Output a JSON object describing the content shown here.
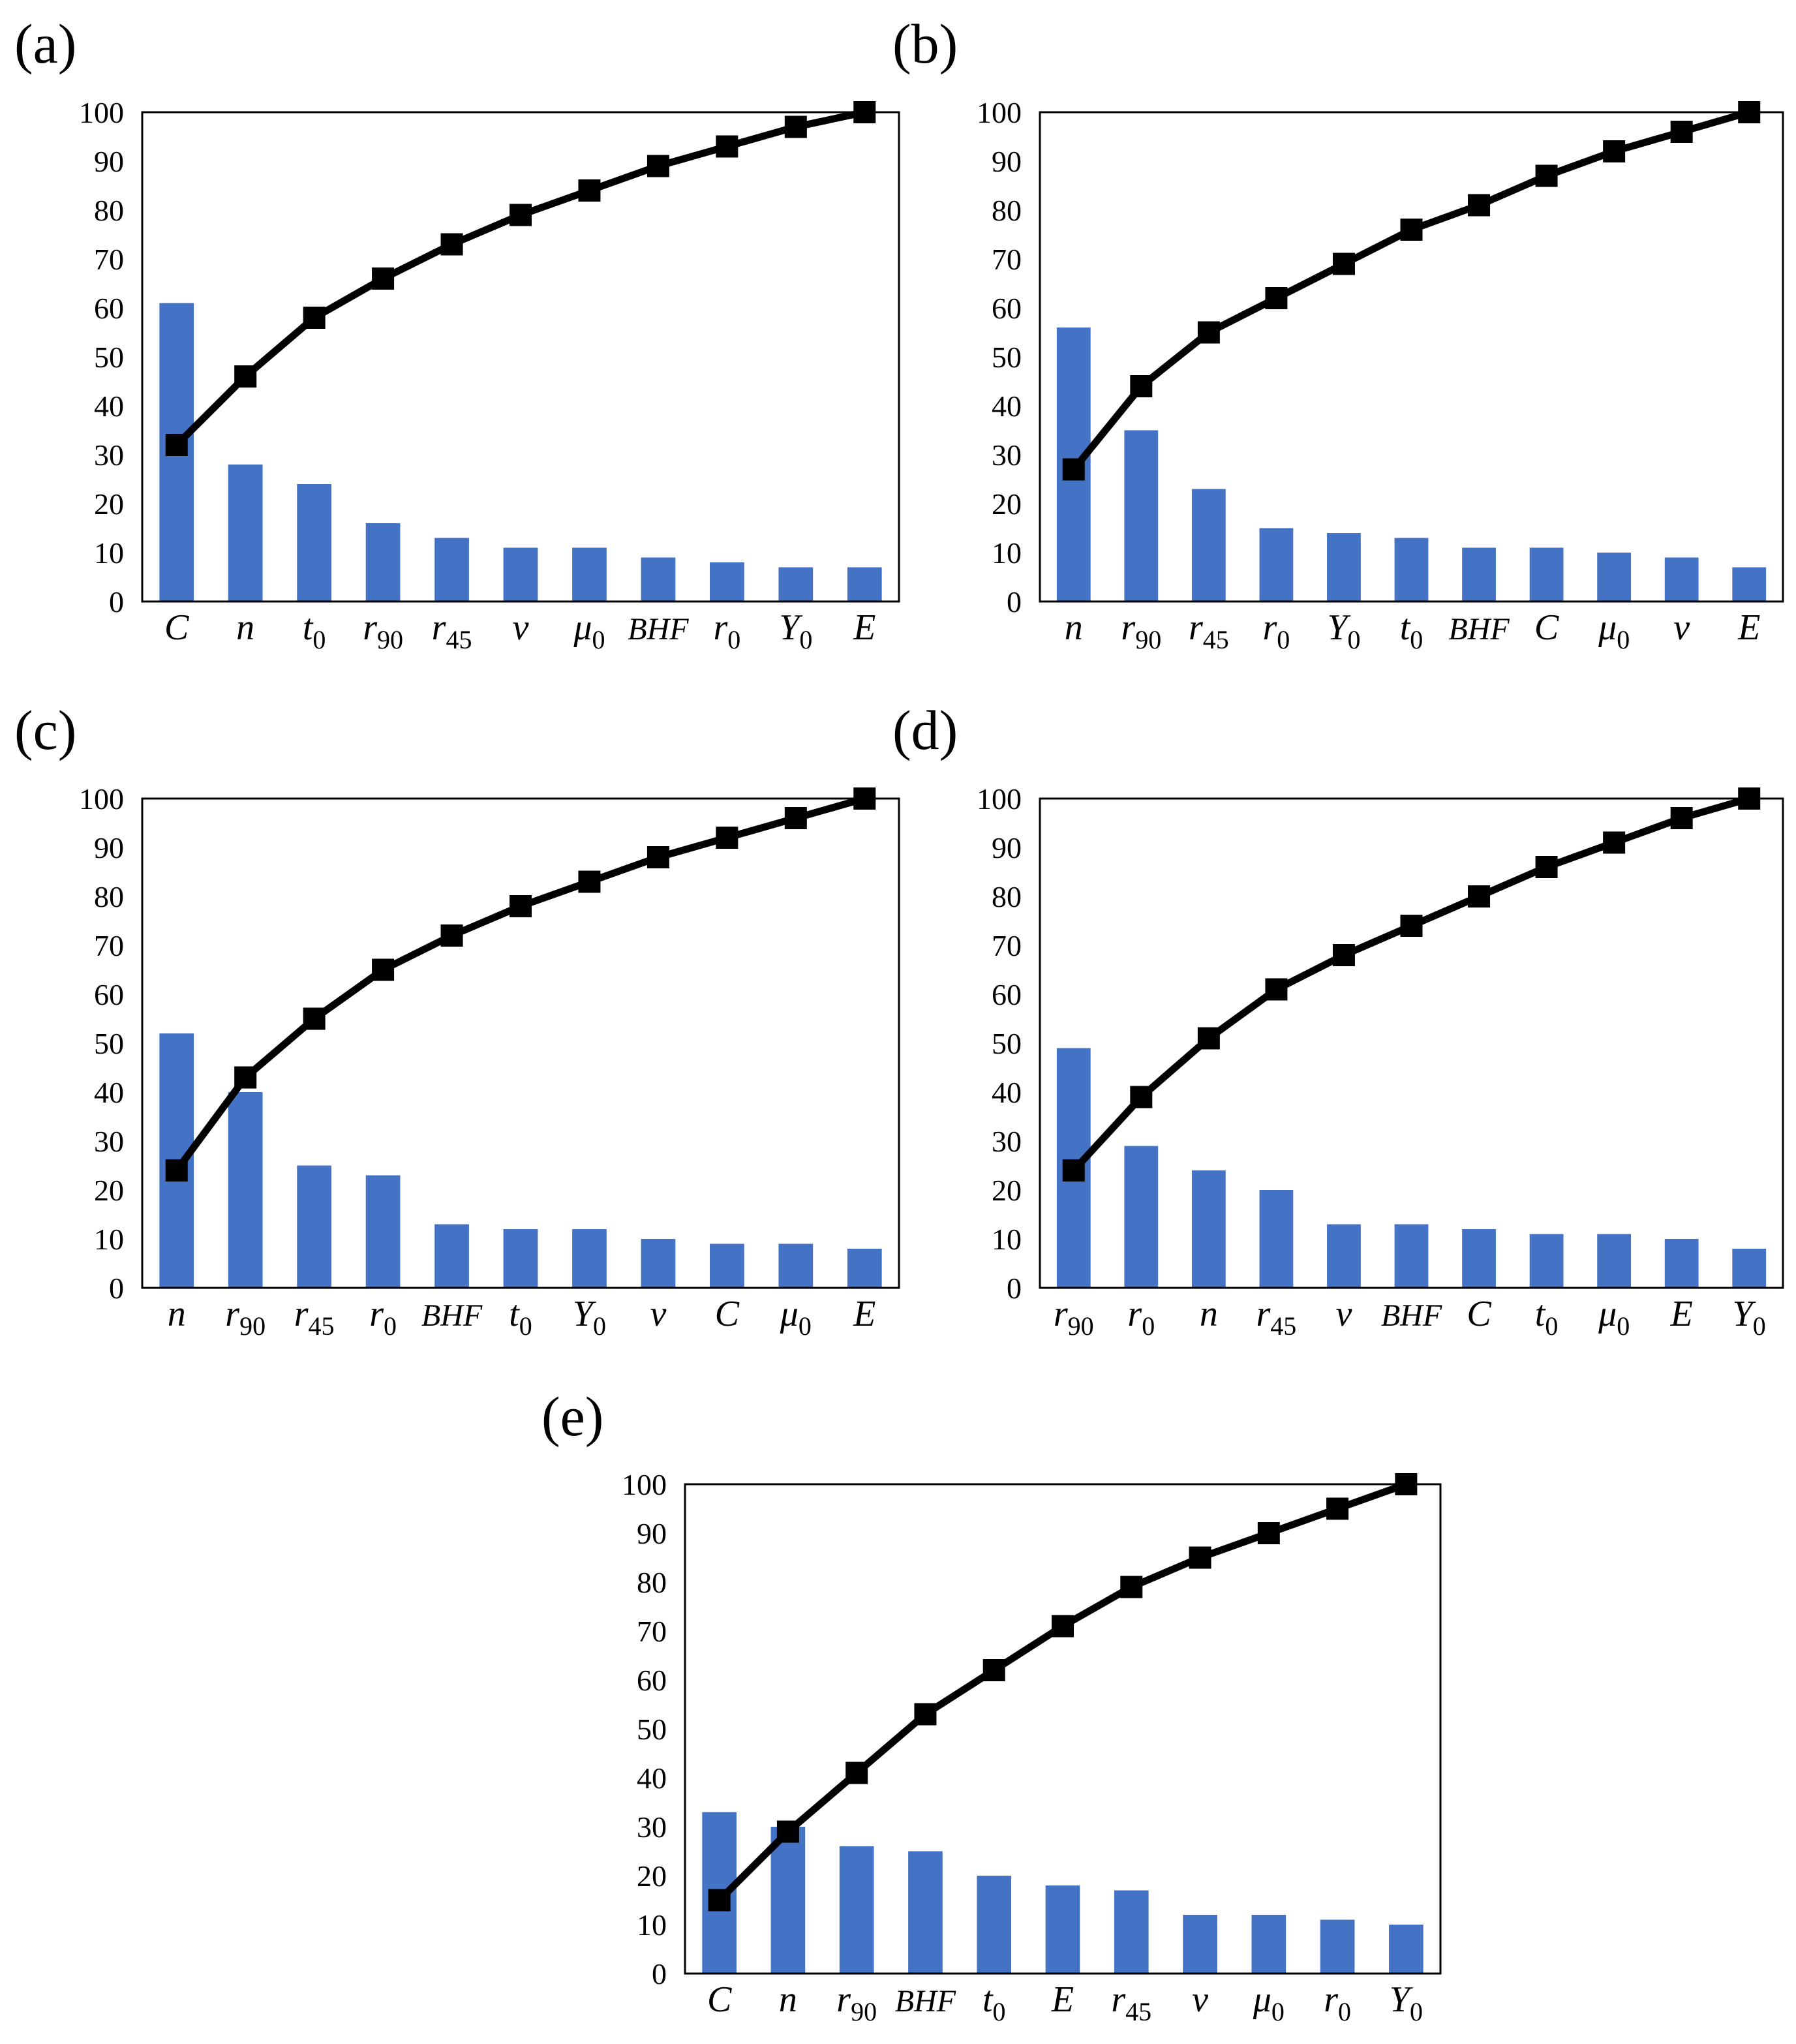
{
  "figure": {
    "colors": {
      "bar": "#4472C4",
      "line": "#000000",
      "frame": "#000000"
    }
  },
  "chart_data": [
    {
      "panel": "(a)",
      "type": "bar",
      "categories": [
        "C",
        "n",
        "t0",
        "r90",
        "r45",
        "v",
        "μ0",
        "BHF",
        "r0",
        "Y0",
        "E"
      ],
      "series": [
        {
          "name": "bars",
          "type": "bar",
          "values": [
            61,
            28,
            24,
            16,
            13,
            11,
            11,
            9,
            8,
            7,
            7
          ]
        },
        {
          "name": "cumulative",
          "type": "line",
          "marker": "square",
          "values": [
            32,
            46,
            58,
            66,
            73,
            79,
            84,
            89,
            93,
            97,
            100
          ]
        }
      ],
      "yticks": [
        0,
        10,
        20,
        30,
        40,
        50,
        60,
        70,
        80,
        90,
        100
      ],
      "ylim": [
        0,
        100
      ]
    },
    {
      "panel": "(b)",
      "type": "bar",
      "categories": [
        "n",
        "r90",
        "r45",
        "r0",
        "Y0",
        "t0",
        "BHF",
        "C",
        "μ0",
        "v",
        "E"
      ],
      "series": [
        {
          "name": "bars",
          "type": "bar",
          "values": [
            56,
            35,
            23,
            15,
            14,
            13,
            11,
            11,
            10,
            9,
            7
          ]
        },
        {
          "name": "cumulative",
          "type": "line",
          "marker": "square",
          "values": [
            27,
            44,
            55,
            62,
            69,
            76,
            81,
            87,
            92,
            96,
            100
          ]
        }
      ],
      "yticks": [
        0,
        10,
        20,
        30,
        40,
        50,
        60,
        70,
        80,
        90,
        100
      ],
      "ylim": [
        0,
        100
      ]
    },
    {
      "panel": "(c)",
      "type": "bar",
      "categories": [
        "n",
        "r90",
        "r45",
        "r0",
        "BHF",
        "t0",
        "Y0",
        "v",
        "C",
        "μ0",
        "E"
      ],
      "series": [
        {
          "name": "bars",
          "type": "bar",
          "values": [
            52,
            40,
            25,
            23,
            13,
            12,
            12,
            10,
            9,
            9,
            8
          ]
        },
        {
          "name": "cumulative",
          "type": "line",
          "marker": "square",
          "values": [
            24,
            43,
            55,
            65,
            72,
            78,
            83,
            88,
            92,
            96,
            100
          ]
        }
      ],
      "yticks": [
        0,
        10,
        20,
        30,
        40,
        50,
        60,
        70,
        80,
        90,
        100
      ],
      "ylim": [
        0,
        100
      ]
    },
    {
      "panel": "(d)",
      "type": "bar",
      "categories": [
        "r90",
        "r0",
        "n",
        "r45",
        "v",
        "BHF",
        "C",
        "t0",
        "μ0",
        "E",
        "Y0"
      ],
      "series": [
        {
          "name": "bars",
          "type": "bar",
          "values": [
            49,
            29,
            24,
            20,
            13,
            13,
            12,
            11,
            11,
            10,
            8
          ]
        },
        {
          "name": "cumulative",
          "type": "line",
          "marker": "square",
          "values": [
            24,
            39,
            51,
            61,
            68,
            74,
            80,
            86,
            91,
            96,
            100
          ]
        }
      ],
      "yticks": [
        0,
        10,
        20,
        30,
        40,
        50,
        60,
        70,
        80,
        90,
        100
      ],
      "ylim": [
        0,
        100
      ]
    },
    {
      "panel": "(e)",
      "type": "bar",
      "categories": [
        "C",
        "n",
        "r90",
        "BHF",
        "t0",
        "E",
        "r45",
        "v",
        "μ0",
        "r0",
        "Y0"
      ],
      "series": [
        {
          "name": "bars",
          "type": "bar",
          "values": [
            33,
            30,
            26,
            25,
            20,
            18,
            17,
            12,
            12,
            11,
            10
          ]
        },
        {
          "name": "cumulative",
          "type": "line",
          "marker": "square",
          "values": [
            15,
            29,
            41,
            53,
            62,
            71,
            79,
            85,
            90,
            95,
            100
          ]
        }
      ],
      "yticks": [
        0,
        10,
        20,
        30,
        40,
        50,
        60,
        70,
        80,
        90,
        100
      ],
      "ylim": [
        0,
        100
      ]
    }
  ]
}
